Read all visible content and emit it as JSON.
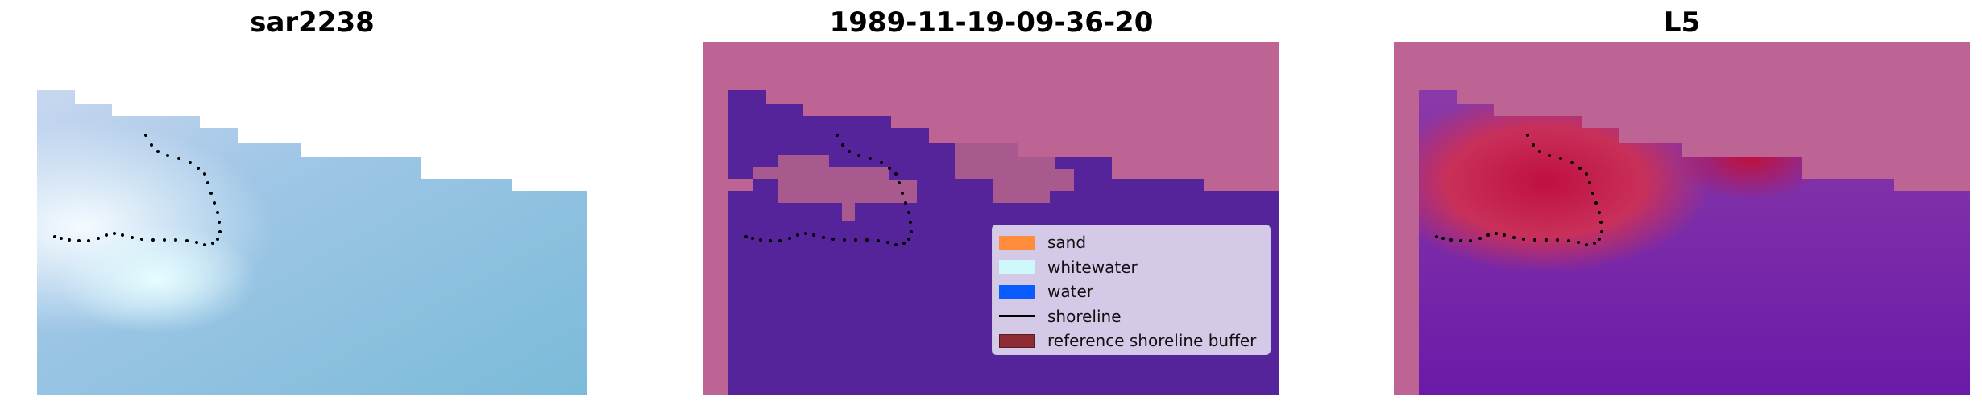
{
  "panels": [
    {
      "title": "sar2238",
      "kind": "rgb-composite"
    },
    {
      "title": "1989-11-19-09-36-20",
      "kind": "classification"
    },
    {
      "title": "L5",
      "kind": "probability"
    }
  ],
  "legend": {
    "items": [
      {
        "label": "sand",
        "color": "#ff8c3a",
        "marker": "patch"
      },
      {
        "label": "whitewater",
        "color": "#cff8fb",
        "marker": "patch"
      },
      {
        "label": "water",
        "color": "#0a5cff",
        "marker": "patch"
      },
      {
        "label": "shoreline",
        "color": "#000000",
        "marker": "line"
      },
      {
        "label": "reference shoreline buffer",
        "color": "#8e2b35",
        "marker": "patch"
      }
    ]
  },
  "colors": {
    "background_mask": "#bd6494",
    "water_class": "#55239a",
    "water_probability": "#6a1aa8",
    "rgb_water": "#8ec8e0"
  }
}
